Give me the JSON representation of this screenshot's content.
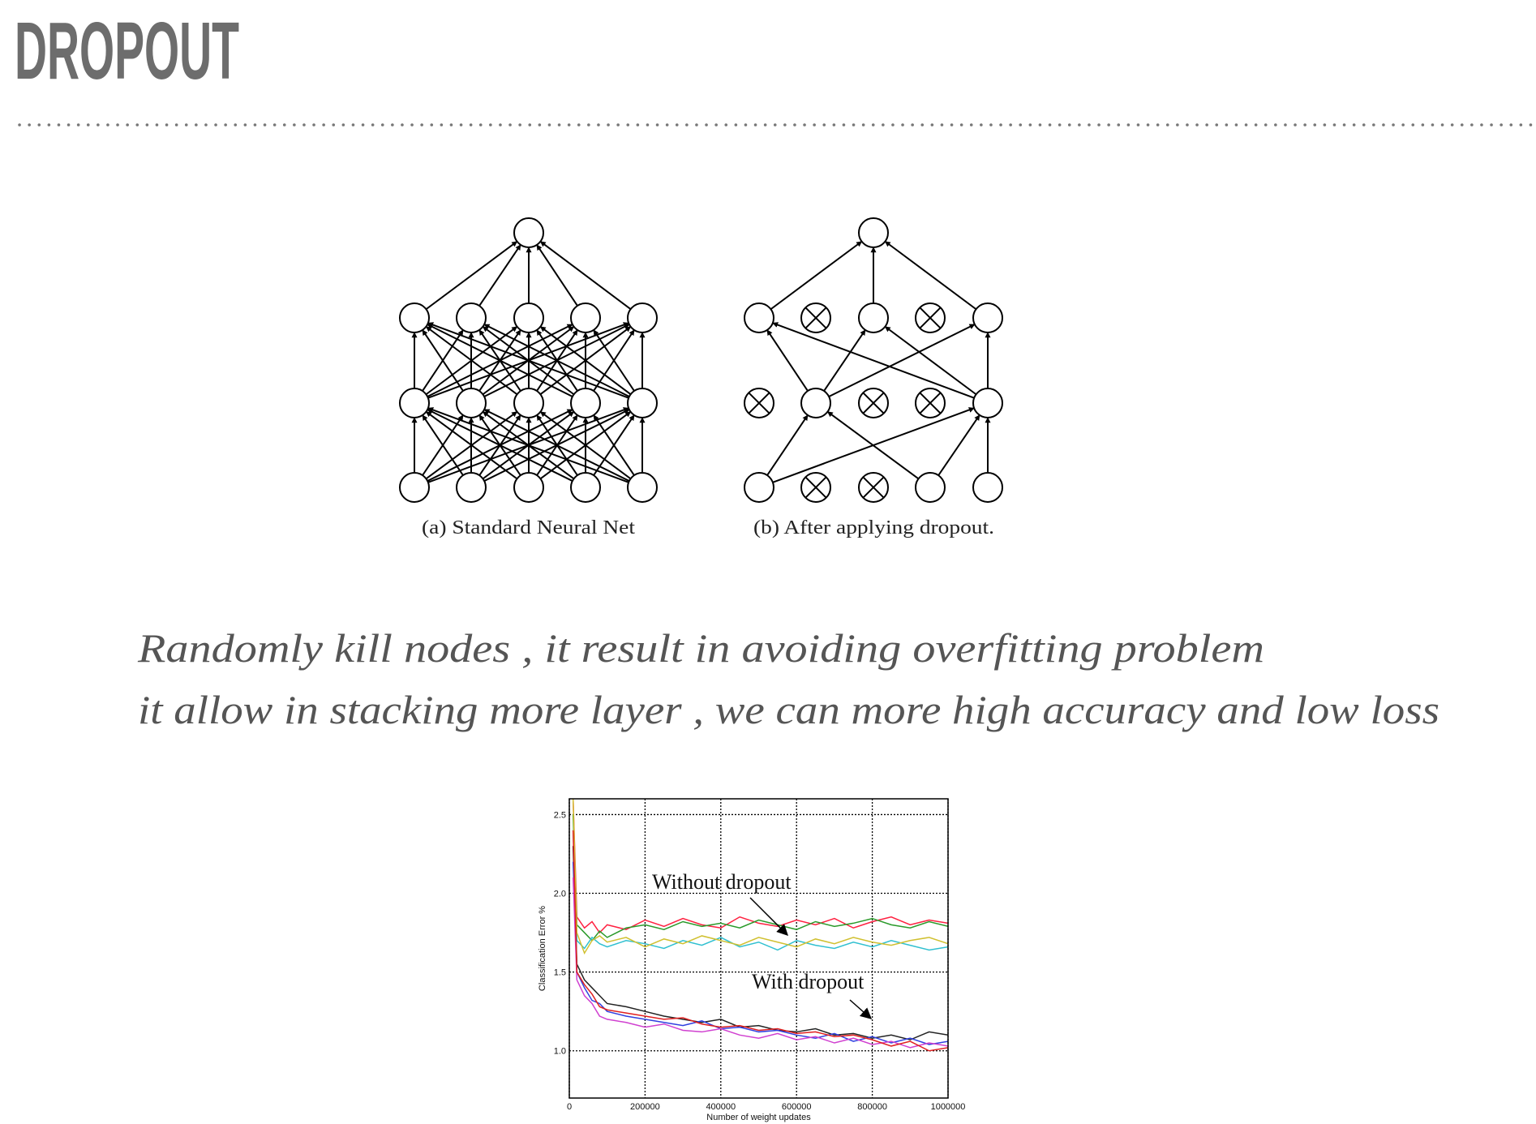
{
  "title": "DROPOUT",
  "figure": {
    "captions": [
      "(a) Standard Neural Net",
      "(b) After applying dropout."
    ]
  },
  "body": {
    "lines": [
      "Randomly kill nodes , it result in avoiding overfitting problem",
      "it allow in stacking more layer , we can more high accuracy and low loss"
    ]
  },
  "chart_data": {
    "type": "line",
    "ylabel": "Classification Error %",
    "xlabel": "Number of weight updates",
    "annotations": [
      "Without dropout",
      "With dropout"
    ],
    "xlim": [
      0,
      1000000
    ],
    "xticks": [
      0,
      200000,
      400000,
      600000,
      800000,
      1000000
    ],
    "ylim": [
      0.7,
      2.6
    ],
    "yticks": [
      {
        "value": 1.0,
        "label": "1.0"
      },
      1.5,
      {
        "value": 2.0,
        "label": "2.0"
      },
      2.5
    ],
    "grid": true,
    "x": [
      10000,
      20000,
      40000,
      60000,
      80000,
      100000,
      150000,
      200000,
      250000,
      300000,
      350000,
      400000,
      450000,
      500000,
      550000,
      600000,
      650000,
      700000,
      750000,
      800000,
      850000,
      900000,
      950000,
      1000000
    ],
    "series": [
      {
        "color": "#ff2040",
        "values": [
          2.6,
          1.85,
          1.78,
          1.82,
          1.75,
          1.8,
          1.77,
          1.83,
          1.79,
          1.84,
          1.8,
          1.78,
          1.85,
          1.81,
          1.79,
          1.83,
          1.8,
          1.84,
          1.78,
          1.82,
          1.85,
          1.8,
          1.83,
          1.81
        ]
      },
      {
        "color": "#2a9a2a",
        "values": [
          2.5,
          1.8,
          1.75,
          1.7,
          1.76,
          1.72,
          1.78,
          1.8,
          1.77,
          1.82,
          1.79,
          1.81,
          1.78,
          1.83,
          1.8,
          1.77,
          1.82,
          1.79,
          1.81,
          1.84,
          1.8,
          1.78,
          1.82,
          1.79
        ]
      },
      {
        "color": "#30c0d0",
        "values": [
          2.4,
          1.7,
          1.65,
          1.72,
          1.68,
          1.66,
          1.7,
          1.68,
          1.65,
          1.7,
          1.67,
          1.72,
          1.66,
          1.69,
          1.64,
          1.7,
          1.67,
          1.65,
          1.69,
          1.66,
          1.7,
          1.67,
          1.64,
          1.66
        ]
      },
      {
        "color": "#d0c030",
        "values": [
          2.6,
          1.75,
          1.62,
          1.7,
          1.73,
          1.69,
          1.72,
          1.66,
          1.71,
          1.68,
          1.73,
          1.7,
          1.67,
          1.72,
          1.69,
          1.66,
          1.71,
          1.68,
          1.72,
          1.69,
          1.67,
          1.7,
          1.72,
          1.68
        ]
      },
      {
        "color": "#222222",
        "values": [
          2.3,
          1.55,
          1.45,
          1.4,
          1.35,
          1.3,
          1.28,
          1.25,
          1.22,
          1.2,
          1.18,
          1.2,
          1.15,
          1.16,
          1.13,
          1.12,
          1.14,
          1.1,
          1.11,
          1.08,
          1.1,
          1.07,
          1.12,
          1.1
        ]
      },
      {
        "color": "#3040e0",
        "values": [
          2.2,
          1.5,
          1.4,
          1.32,
          1.3,
          1.25,
          1.22,
          1.2,
          1.18,
          1.16,
          1.19,
          1.14,
          1.15,
          1.12,
          1.13,
          1.1,
          1.08,
          1.11,
          1.06,
          1.09,
          1.05,
          1.08,
          1.04,
          1.06
        ]
      },
      {
        "color": "#d040d0",
        "values": [
          2.1,
          1.45,
          1.35,
          1.3,
          1.22,
          1.2,
          1.18,
          1.15,
          1.17,
          1.13,
          1.12,
          1.14,
          1.1,
          1.08,
          1.11,
          1.07,
          1.09,
          1.05,
          1.08,
          1.04,
          1.06,
          1.02,
          1.05,
          1.03
        ]
      },
      {
        "color": "#e02020",
        "values": [
          2.4,
          1.5,
          1.42,
          1.36,
          1.28,
          1.26,
          1.24,
          1.22,
          1.2,
          1.21,
          1.17,
          1.15,
          1.16,
          1.13,
          1.14,
          1.11,
          1.12,
          1.09,
          1.1,
          1.07,
          1.03,
          1.06,
          1.0,
          1.02
        ]
      }
    ]
  }
}
